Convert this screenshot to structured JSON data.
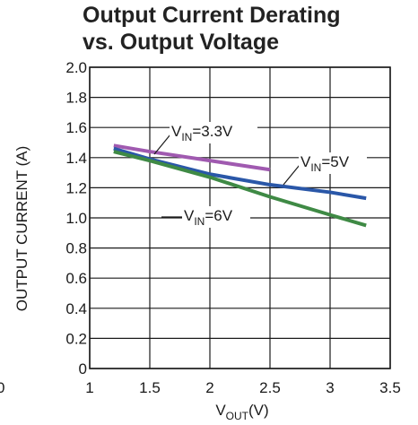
{
  "chart_data": {
    "type": "line",
    "title_line1": "Output Current Derating",
    "title_line2": "vs. Output Voltage",
    "xlabel_main": "V",
    "xlabel_sub": "OUT",
    "xlabel_unit": "(V)",
    "ylabel": "OUTPUT CURRENT (A)",
    "xlim": [
      1,
      3.5
    ],
    "ylim": [
      0,
      2.0
    ],
    "x_ticks": [
      "1",
      "1.5",
      "2",
      "2.5",
      "3",
      "3.5"
    ],
    "y_ticks": [
      "0",
      "0.2",
      "0.4",
      "0.6",
      "0.8",
      "1.0",
      "1.2",
      "1.4",
      "1.6",
      "1.8",
      "2.0"
    ],
    "extra_tick": "0",
    "grid": true,
    "series": [
      {
        "name": "V_IN=3.3V",
        "label_main": "V",
        "label_sub": "IN",
        "label_rest": "=3.3V",
        "color": "#a05ab0",
        "x": [
          1.2,
          1.5,
          2.0,
          2.5
        ],
        "y": [
          1.48,
          1.44,
          1.38,
          1.32
        ]
      },
      {
        "name": "V_IN=5V",
        "label_main": "V",
        "label_sub": "IN",
        "label_rest": "=5V",
        "color": "#2a57a8",
        "x": [
          1.2,
          1.5,
          2.0,
          2.5,
          3.0,
          3.3
        ],
        "y": [
          1.46,
          1.39,
          1.29,
          1.22,
          1.17,
          1.13
        ]
      },
      {
        "name": "V_IN=6V",
        "label_main": "V",
        "label_sub": "IN",
        "label_rest": "=6V",
        "color": "#3f8a45",
        "x": [
          1.2,
          1.5,
          2.0,
          2.5,
          3.0,
          3.3
        ],
        "y": [
          1.44,
          1.38,
          1.27,
          1.14,
          1.02,
          0.95
        ]
      }
    ]
  }
}
